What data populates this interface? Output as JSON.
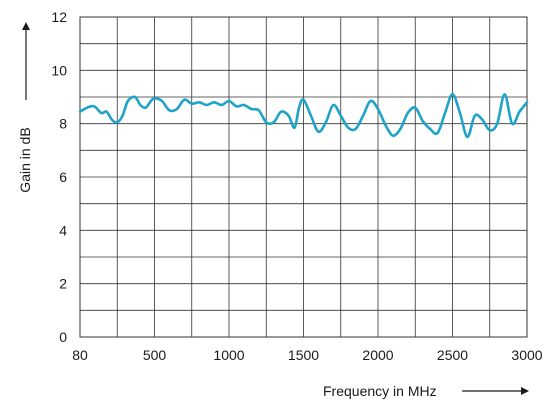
{
  "chart_data": {
    "type": "line",
    "xlabel": "Frequency in MHz",
    "ylabel": "Gain in dB",
    "x_ticks": [
      "80",
      "500",
      "1000",
      "1500",
      "2000",
      "2500",
      "3000"
    ],
    "y_ticks": [
      "0",
      "2",
      "4",
      "6",
      "8",
      "10",
      "12"
    ],
    "ylim": [
      0,
      12
    ],
    "x_tick_values": [
      80,
      500,
      1000,
      1500,
      2000,
      2500,
      3000
    ],
    "x_scale": "piecewise-linear between labeled ticks (80-500 spans one major division)",
    "grid": true,
    "line_color": "#1ea3c9",
    "series": [
      {
        "values": [
          [
            80,
            8.45
          ],
          [
            120,
            8.6
          ],
          [
            160,
            8.65
          ],
          [
            200,
            8.4
          ],
          [
            230,
            8.45
          ],
          [
            260,
            8.15
          ],
          [
            290,
            8.05
          ],
          [
            320,
            8.3
          ],
          [
            350,
            8.85
          ],
          [
            390,
            9.0
          ],
          [
            420,
            8.7
          ],
          [
            450,
            8.6
          ],
          [
            480,
            8.85
          ],
          [
            500,
            8.95
          ],
          [
            550,
            8.85
          ],
          [
            600,
            8.5
          ],
          [
            650,
            8.55
          ],
          [
            700,
            8.9
          ],
          [
            750,
            8.75
          ],
          [
            800,
            8.8
          ],
          [
            850,
            8.7
          ],
          [
            900,
            8.8
          ],
          [
            950,
            8.7
          ],
          [
            1000,
            8.85
          ],
          [
            1050,
            8.65
          ],
          [
            1100,
            8.7
          ],
          [
            1150,
            8.55
          ],
          [
            1200,
            8.5
          ],
          [
            1250,
            8.05
          ],
          [
            1300,
            8.05
          ],
          [
            1350,
            8.45
          ],
          [
            1400,
            8.3
          ],
          [
            1440,
            7.85
          ],
          [
            1470,
            8.6
          ],
          [
            1500,
            8.9
          ],
          [
            1550,
            8.3
          ],
          [
            1600,
            7.7
          ],
          [
            1650,
            8.05
          ],
          [
            1700,
            8.7
          ],
          [
            1750,
            8.3
          ],
          [
            1800,
            7.85
          ],
          [
            1850,
            7.8
          ],
          [
            1900,
            8.3
          ],
          [
            1950,
            8.85
          ],
          [
            2000,
            8.55
          ],
          [
            2050,
            7.95
          ],
          [
            2100,
            7.55
          ],
          [
            2150,
            7.8
          ],
          [
            2200,
            8.4
          ],
          [
            2250,
            8.6
          ],
          [
            2300,
            8.1
          ],
          [
            2350,
            7.8
          ],
          [
            2400,
            7.65
          ],
          [
            2450,
            8.4
          ],
          [
            2500,
            9.1
          ],
          [
            2550,
            8.4
          ],
          [
            2600,
            7.5
          ],
          [
            2650,
            8.3
          ],
          [
            2700,
            8.15
          ],
          [
            2750,
            7.75
          ],
          [
            2800,
            8.0
          ],
          [
            2850,
            9.1
          ],
          [
            2900,
            8.0
          ],
          [
            2950,
            8.45
          ],
          [
            3000,
            8.8
          ]
        ]
      }
    ]
  }
}
